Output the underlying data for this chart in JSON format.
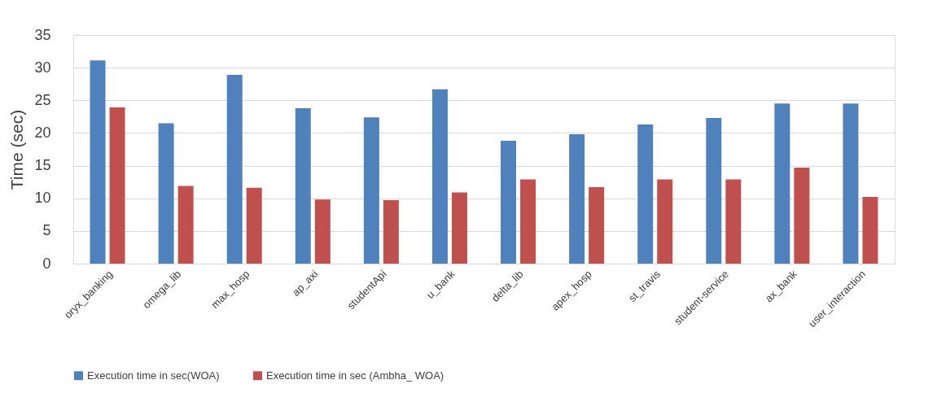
{
  "chart_data": {
    "type": "bar",
    "ylabel": "Time (sec)",
    "categories": [
      "oryx_banking",
      "omega_lib",
      "max_hosp",
      "ap_axi",
      "studentApi",
      "u_bank",
      "delta_lib",
      "apex_hosp",
      "st_travis",
      "student-service",
      "ax_bank",
      "user_interaction"
    ],
    "series": [
      {
        "name": "Execution time in sec(WOA)",
        "color": "#4f81bd",
        "values": [
          31.1,
          21.5,
          28.9,
          23.8,
          22.4,
          26.7,
          18.8,
          19.8,
          21.3,
          22.3,
          24.5,
          24.5
        ]
      },
      {
        "name": "Execution time in sec (Ambha_ WOA)",
        "color": "#c0504d",
        "values": [
          23.9,
          11.9,
          11.6,
          9.8,
          9.7,
          10.9,
          12.9,
          11.7,
          12.9,
          12.9,
          14.7,
          10.2
        ]
      }
    ],
    "ylim": [
      0,
      35
    ],
    "yticks": [
      0,
      5,
      10,
      15,
      20,
      25,
      30,
      35
    ],
    "grid": "y",
    "legend": "bottom"
  }
}
